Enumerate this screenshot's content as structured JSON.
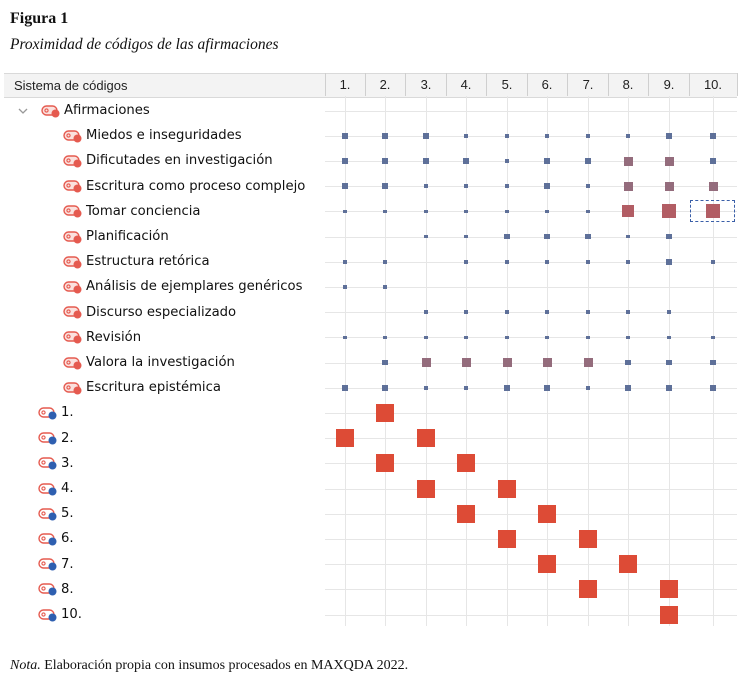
{
  "figure": {
    "title": "Figura 1",
    "subtitle": "Proximidad de códigos de las afirmaciones"
  },
  "matrix": {
    "header_label": "Sistema de códigos",
    "columns": [
      "1.",
      "2.",
      "3.",
      "4.",
      "5.",
      "6.",
      "7.",
      "8.",
      "9.",
      "10."
    ],
    "colors": {
      "small": "#5e7099",
      "purple": "#946c7c",
      "mauve": "#b25d64",
      "red": "#dd4b36",
      "code_icon": "#e55a4f",
      "doc_dot": "#2e5fb0"
    },
    "parent": {
      "label": "Afirmaciones",
      "expanded": true
    },
    "rows": [
      {
        "label": "Miedos e inseguridades",
        "kind": "code",
        "cells": [
          [
            "s",
            2
          ],
          [
            "s",
            2
          ],
          [
            "s",
            2
          ],
          [
            "s",
            1
          ],
          [
            "s",
            1
          ],
          [
            "s",
            1
          ],
          [
            "s",
            1
          ],
          [
            "s",
            1
          ],
          [
            "s",
            2
          ],
          [
            "s",
            2
          ]
        ]
      },
      {
        "label": "Dificutades en investigación",
        "kind": "code",
        "cells": [
          [
            "s",
            2
          ],
          [
            "s",
            2
          ],
          [
            "s",
            2
          ],
          [
            "s",
            2
          ],
          [
            "s",
            1
          ],
          [
            "s",
            2
          ],
          [
            "s",
            2
          ],
          [
            "p",
            3
          ],
          [
            "p",
            3
          ],
          [
            "s",
            2
          ]
        ]
      },
      {
        "label": "Escritura como proceso complejo",
        "kind": "code",
        "cells": [
          [
            "s",
            2
          ],
          [
            "s",
            2
          ],
          [
            "s",
            1
          ],
          [
            "s",
            1
          ],
          [
            "s",
            1
          ],
          [
            "s",
            2
          ],
          [
            "s",
            1
          ],
          [
            "p",
            3
          ],
          [
            "p",
            3
          ],
          [
            "p",
            3
          ]
        ]
      },
      {
        "label": "Tomar conciencia",
        "kind": "code",
        "cells": [
          [
            "s",
            1
          ],
          [
            "s",
            1
          ],
          [
            "s",
            1
          ],
          [
            "s",
            1
          ],
          [
            "s",
            1
          ],
          [
            "s",
            1
          ],
          [
            "s",
            1
          ],
          [
            "m",
            4
          ],
          [
            "m",
            5
          ],
          [
            "m",
            5
          ]
        ]
      },
      {
        "label": "Planificación",
        "kind": "code",
        "cells": [
          null,
          null,
          [
            "s",
            1
          ],
          [
            "s",
            1
          ],
          [
            "s",
            2
          ],
          [
            "s",
            2
          ],
          [
            "s",
            2
          ],
          [
            "s",
            1
          ],
          [
            "s",
            2
          ],
          null
        ]
      },
      {
        "label": "Estructura retórica",
        "kind": "code",
        "cells": [
          [
            "s",
            1
          ],
          [
            "s",
            1
          ],
          null,
          [
            "s",
            1
          ],
          [
            "s",
            1
          ],
          [
            "s",
            1
          ],
          [
            "s",
            1
          ],
          [
            "s",
            1
          ],
          [
            "s",
            2
          ],
          [
            "s",
            1
          ]
        ]
      },
      {
        "label": "Análisis de ejemplares genéricos",
        "kind": "code",
        "cells": [
          [
            "s",
            1
          ],
          [
            "s",
            1
          ],
          null,
          null,
          null,
          null,
          null,
          null,
          null,
          null
        ]
      },
      {
        "label": "Discurso especializado",
        "kind": "code",
        "cells": [
          null,
          null,
          [
            "s",
            1
          ],
          [
            "s",
            1
          ],
          [
            "s",
            1
          ],
          [
            "s",
            1
          ],
          [
            "s",
            1
          ],
          [
            "s",
            1
          ],
          [
            "s",
            1
          ],
          null
        ]
      },
      {
        "label": "Revisión",
        "kind": "code",
        "cells": [
          [
            "s",
            1
          ],
          [
            "s",
            1
          ],
          [
            "s",
            1
          ],
          [
            "s",
            1
          ],
          [
            "s",
            1
          ],
          [
            "s",
            1
          ],
          [
            "s",
            1
          ],
          [
            "s",
            1
          ],
          [
            "s",
            1
          ],
          [
            "s",
            1
          ]
        ]
      },
      {
        "label": "Valora la investigación",
        "kind": "code",
        "cells": [
          null,
          [
            "s",
            2
          ],
          [
            "p",
            3
          ],
          [
            "p",
            3
          ],
          [
            "p",
            3
          ],
          [
            "p",
            3
          ],
          [
            "p",
            3
          ],
          [
            "s",
            2
          ],
          [
            "s",
            2
          ],
          [
            "s",
            2
          ]
        ]
      },
      {
        "label": "Escritura epistémica",
        "kind": "code",
        "cells": [
          [
            "s",
            2
          ],
          [
            "s",
            2
          ],
          [
            "s",
            1
          ],
          [
            "s",
            1
          ],
          [
            "s",
            2
          ],
          [
            "s",
            2
          ],
          [
            "s",
            1
          ],
          [
            "s",
            2
          ],
          [
            "s",
            2
          ],
          [
            "s",
            2
          ]
        ]
      },
      {
        "label": "1.",
        "kind": "doc",
        "cells": [
          null,
          [
            "r",
            6
          ],
          null,
          null,
          null,
          null,
          null,
          null,
          null,
          null
        ]
      },
      {
        "label": "2.",
        "kind": "doc",
        "cells": [
          [
            "r",
            6
          ],
          null,
          [
            "r",
            6
          ],
          null,
          null,
          null,
          null,
          null,
          null,
          null
        ]
      },
      {
        "label": "3.",
        "kind": "doc",
        "cells": [
          null,
          [
            "r",
            6
          ],
          null,
          [
            "r",
            6
          ],
          null,
          null,
          null,
          null,
          null,
          null
        ]
      },
      {
        "label": "4.",
        "kind": "doc",
        "cells": [
          null,
          null,
          [
            "r",
            6
          ],
          null,
          [
            "r",
            6
          ],
          null,
          null,
          null,
          null,
          null
        ]
      },
      {
        "label": "5.",
        "kind": "doc",
        "cells": [
          null,
          null,
          null,
          [
            "r",
            6
          ],
          null,
          [
            "r",
            6
          ],
          null,
          null,
          null,
          null
        ]
      },
      {
        "label": "6.",
        "kind": "doc",
        "cells": [
          null,
          null,
          null,
          null,
          [
            "r",
            6
          ],
          null,
          [
            "r",
            6
          ],
          null,
          null,
          null
        ]
      },
      {
        "label": "7.",
        "kind": "doc",
        "cells": [
          null,
          null,
          null,
          null,
          null,
          [
            "r",
            6
          ],
          null,
          [
            "r",
            6
          ],
          null,
          null
        ]
      },
      {
        "label": "8.",
        "kind": "doc",
        "cells": [
          null,
          null,
          null,
          null,
          null,
          null,
          [
            "r",
            6
          ],
          null,
          [
            "r",
            6
          ],
          null
        ]
      },
      {
        "label": "10.",
        "kind": "doc",
        "cells": [
          null,
          null,
          null,
          null,
          null,
          null,
          null,
          null,
          [
            "r",
            6
          ],
          null
        ]
      }
    ]
  },
  "note": {
    "prefix": "Nota.",
    "text": " Elaboración propia con insumos procesados en MAXQDA 2022."
  }
}
